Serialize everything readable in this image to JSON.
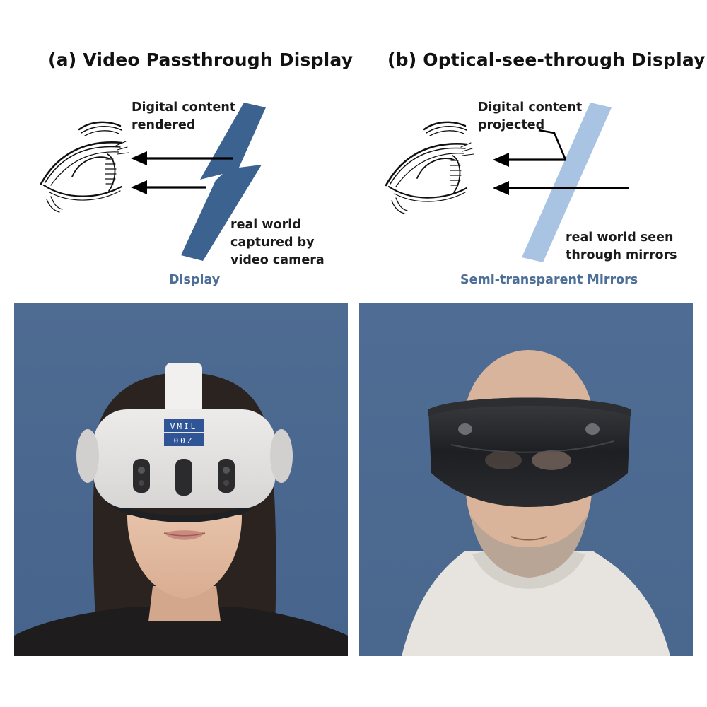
{
  "panel_a": {
    "title": "(a) Video Passthrough Display",
    "label_top": [
      "Digital content",
      "rendered"
    ],
    "label_bottom": [
      "real world",
      "captured by",
      "video camera"
    ],
    "caption": "Display",
    "colors": {
      "panel": "#3c628f",
      "background": "#4b6890"
    },
    "photo": {
      "subject": "person wearing video passthrough headset",
      "headset_stamp": [
        "VMIL",
        "00Z"
      ]
    }
  },
  "panel_b": {
    "title": "(b) Optical-see-through Display",
    "label_top": [
      "Digital content",
      "projected"
    ],
    "label_bottom": [
      "real world seen",
      "through mirrors"
    ],
    "caption": "Semi-transparent Mirrors",
    "colors": {
      "panel": "#a9c4e2",
      "background": "#4e6b92"
    },
    "photo": {
      "subject": "person wearing optical-see-through headset"
    }
  },
  "icons": [
    "eye-icon",
    "arrow-left-icon"
  ]
}
